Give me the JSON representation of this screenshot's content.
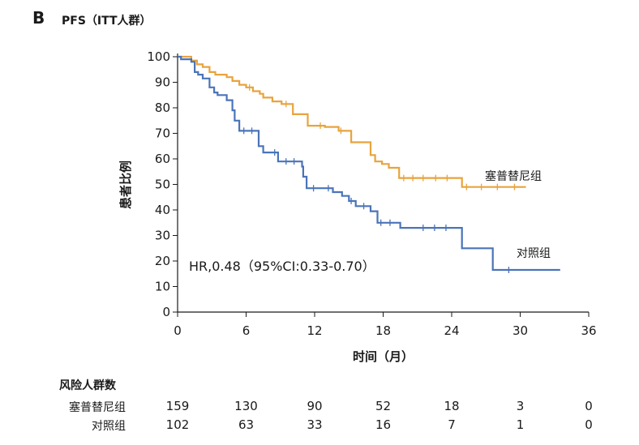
{
  "panel": {
    "letter": "B",
    "title": "PFS（ITT人群）"
  },
  "colors": {
    "treatment": "#E8A33D",
    "control": "#4A74B8",
    "axis": "#1a1a1a"
  },
  "chart_data": {
    "type": "line",
    "subtype": "kaplan-meier",
    "xlabel": "时间（月）",
    "ylabel": "患者比例",
    "xlim": [
      0,
      36
    ],
    "ylim": [
      0,
      100
    ],
    "xticks": [
      0,
      6,
      12,
      18,
      24,
      30,
      36
    ],
    "yticks": [
      0,
      10,
      20,
      30,
      40,
      50,
      60,
      70,
      80,
      90,
      100
    ],
    "annotation": "HR,0.48（95%CI:0.33-0.70）",
    "series": [
      {
        "name": "塞普替尼组",
        "color": "#E8A33D",
        "x": [
          0,
          1.2,
          1.7,
          2.2,
          2.8,
          3.3,
          4.3,
          4.8,
          5.4,
          6,
          6.6,
          7.2,
          7.5,
          8.3,
          9.1,
          10.1,
          11,
          11.4,
          12.3,
          12.9,
          13.4,
          14.1,
          14.6,
          15.2,
          15.7,
          16.3,
          16.9,
          17.3,
          17.9,
          18.5,
          19.2,
          19.4,
          20,
          22,
          24,
          24.9,
          26,
          28,
          30.5
        ],
        "y": [
          100,
          98.5,
          97,
          96,
          94,
          93,
          92,
          90.5,
          89,
          88,
          86.5,
          85.5,
          84,
          82.5,
          81.5,
          77.5,
          77.5,
          73,
          73,
          72.5,
          72.5,
          71,
          71,
          66.5,
          66.5,
          66.5,
          61.5,
          59,
          58,
          56.5,
          56.5,
          52.5,
          52.5,
          52.5,
          52.5,
          49,
          49,
          49,
          49
        ],
        "censored_x": [
          6.3,
          9.5,
          12.5,
          14.3,
          19.8,
          20.6,
          21.5,
          22.6,
          23.6,
          25.3,
          26.6,
          28,
          29.5
        ]
      },
      {
        "name": "对照组",
        "color": "#4A74B8",
        "x": [
          0,
          0.3,
          1.2,
          1.5,
          1.8,
          2.2,
          2.8,
          3.2,
          3.5,
          4.3,
          4.8,
          5,
          5.4,
          7.1,
          7.5,
          8.8,
          10.9,
          11,
          11.3,
          13.6,
          14.4,
          15,
          15.6,
          16.9,
          17.5,
          19.5,
          24.5,
          24.9,
          26.7,
          27.6,
          33.5
        ],
        "y": [
          100,
          99,
          98,
          94,
          93,
          91.5,
          88,
          86,
          85,
          83,
          79,
          75,
          71,
          65,
          62.5,
          59,
          57,
          53,
          48.5,
          47,
          45.5,
          43.5,
          41.5,
          39.5,
          35,
          33,
          33,
          25,
          25,
          16.5,
          16.5
        ],
        "censored_x": [
          5.8,
          6.5,
          8.5,
          9.5,
          10.2,
          11.9,
          13.2,
          15.2,
          16.3,
          17.8,
          18.6,
          21.5,
          22.5,
          23.5,
          29
        ]
      }
    ],
    "risk_table": {
      "title": "风险人群数",
      "times": [
        0,
        6,
        12,
        18,
        24,
        30,
        36
      ],
      "rows": [
        {
          "label": "塞普替尼组",
          "values": [
            159,
            130,
            90,
            52,
            18,
            3,
            0
          ]
        },
        {
          "label": "对照组",
          "values": [
            102,
            63,
            33,
            16,
            7,
            1,
            0
          ]
        }
      ]
    }
  }
}
